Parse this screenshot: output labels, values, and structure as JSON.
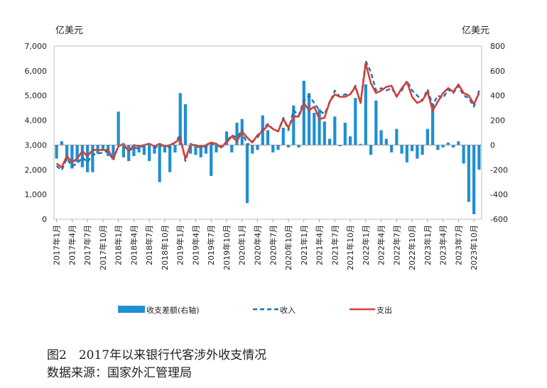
{
  "units": {
    "left": "亿美元",
    "right": "亿美元"
  },
  "caption": {
    "title": "图2　2017年以来银行代客涉外收支情况",
    "source": "数据来源：国家外汇管理局"
  },
  "colors": {
    "balance": "#1f8fd0",
    "income": "#1a6fb5",
    "expense": "#d0413a",
    "axis": "#888888",
    "grid": "#bfbfbf"
  },
  "chart_data": {
    "type": "bar",
    "title": "",
    "x": [
      "2017年1月",
      "2017年2月",
      "2017年3月",
      "2017年4月",
      "2017年5月",
      "2017年6月",
      "2017年7月",
      "2017年8月",
      "2017年9月",
      "2017年10月",
      "2017年11月",
      "2017年12月",
      "2018年1月",
      "2018年2月",
      "2018年3月",
      "2018年4月",
      "2018年5月",
      "2018年6月",
      "2018年7月",
      "2018年8月",
      "2018年9月",
      "2018年10月",
      "2018年11月",
      "2018年12月",
      "2019年1月",
      "2019年2月",
      "2019年3月",
      "2019年4月",
      "2019年5月",
      "2019年6月",
      "2019年7月",
      "2019年8月",
      "2019年9月",
      "2019年10月",
      "2019年11月",
      "2019年12月",
      "2020年1月",
      "2020年2月",
      "2020年3月",
      "2020年4月",
      "2020年5月",
      "2020年6月",
      "2020年7月",
      "2020年8月",
      "2020年9月",
      "2020年10月",
      "2020年11月",
      "2020年12月",
      "2021年1月",
      "2021年2月",
      "2021年3月",
      "2021年4月",
      "2021年5月",
      "2021年6月",
      "2021年7月",
      "2021年8月",
      "2021年9月",
      "2021年10月",
      "2021年11月",
      "2021年12月",
      "2022年1月",
      "2022年2月",
      "2022年3月",
      "2022年4月",
      "2022年5月",
      "2022年6月",
      "2022年7月",
      "2022年8月",
      "2022年9月",
      "2022年10月",
      "2022年11月",
      "2022年12月",
      "2023年1月",
      "2023年2月",
      "2023年3月",
      "2023年4月",
      "2023年5月",
      "2023年6月",
      "2023年7月",
      "2023年8月",
      "2023年9月",
      "2023年10月",
      "2023年11月"
    ],
    "x_tick_labels": [
      "2017年1月",
      "2017年4月",
      "2017年7月",
      "2017年10月",
      "2018年1月",
      "2018年4月",
      "2018年7月",
      "2018年10月",
      "2019年1月",
      "2019年4月",
      "2019年7月",
      "2019年10月",
      "2020年1月",
      "2020年4月",
      "2020年7月",
      "2020年10月",
      "2021年1月",
      "2021年4月",
      "2021年7月",
      "2021年10月",
      "2022年1月",
      "2022年4月",
      "2022年7月",
      "2022年10月",
      "2023年1月",
      "2023年4月",
      "2023年7月",
      "2023年10月"
    ],
    "y_left": {
      "ylim": [
        0,
        7000
      ],
      "ticks": [
        "0",
        "1,000",
        "2,000",
        "3,000",
        "4,000",
        "5,000",
        "6,000",
        "7,000"
      ]
    },
    "y_right": {
      "ylim": [
        -600,
        800
      ],
      "ticks": [
        "-600",
        "-400",
        "-200",
        "0",
        "200",
        "400",
        "600",
        "800"
      ]
    },
    "legend_position": "bottom",
    "series": [
      {
        "name": "收支差额(右轴)",
        "kind": "bar",
        "axis": "right",
        "values": [
          -110,
          30,
          -120,
          -190,
          -140,
          -180,
          -220,
          -220,
          -70,
          -40,
          -90,
          -120,
          270,
          -100,
          -130,
          -90,
          -60,
          -80,
          -130,
          -70,
          -300,
          -60,
          -220,
          -60,
          420,
          330,
          -70,
          -80,
          -100,
          -70,
          -250,
          -60,
          -20,
          110,
          -60,
          180,
          210,
          -470,
          -70,
          -40,
          240,
          120,
          -60,
          -40,
          140,
          -20,
          320,
          -20,
          520,
          420,
          260,
          290,
          190,
          50,
          230,
          -10,
          180,
          70,
          380,
          10,
          490,
          -80,
          360,
          120,
          50,
          -60,
          130,
          -70,
          -140,
          -50,
          -110,
          -80,
          130,
          330,
          -40,
          -20,
          20,
          -20,
          30,
          -150,
          -460,
          -560,
          -200
        ],
        "color": "#1f8fd0"
      },
      {
        "name": "收入",
        "kind": "line",
        "axis": "left",
        "style": "dashed",
        "values": [
          2150,
          1980,
          2450,
          2150,
          2250,
          2500,
          2300,
          2600,
          2650,
          2700,
          2750,
          2380,
          2980,
          3000,
          2750,
          2900,
          2850,
          3000,
          3050,
          2900,
          2950,
          3000,
          2900,
          3100,
          3400,
          2350,
          3050,
          2950,
          2900,
          2950,
          3050,
          3000,
          2900,
          3150,
          3400,
          3300,
          3600,
          3000,
          3150,
          3300,
          3650,
          3850,
          3650,
          3550,
          4100,
          3600,
          4400,
          4200,
          4800,
          5000,
          4700,
          4400,
          4250,
          4700,
          5200,
          4950,
          5050,
          5050,
          5400,
          4700,
          6400,
          5950,
          5200,
          5300,
          5200,
          5300,
          5000,
          5200,
          5600,
          5200,
          5000,
          4800,
          5250,
          4600,
          5000,
          4900,
          5250,
          5100,
          5400,
          5000,
          4900,
          4550,
          5200
        ],
        "color": "#1a6fb5"
      },
      {
        "name": "支出",
        "kind": "line",
        "axis": "left",
        "style": "solid",
        "values": [
          2250,
          2100,
          2550,
          2300,
          2450,
          2750,
          2550,
          2800,
          2800,
          2800,
          2800,
          2450,
          2950,
          3050,
          2750,
          3000,
          2950,
          3000,
          3050,
          2950,
          3050,
          2950,
          3000,
          3100,
          3250,
          2450,
          3000,
          3000,
          2900,
          3000,
          3100,
          3050,
          2900,
          3100,
          3350,
          3150,
          3550,
          3300,
          3100,
          3400,
          3550,
          3800,
          3650,
          3550,
          4050,
          3700,
          4150,
          4150,
          4700,
          4400,
          4550,
          4050,
          4100,
          4750,
          5050,
          4950,
          4950,
          5050,
          5350,
          4700,
          6300,
          5500,
          5100,
          5200,
          5350,
          5400,
          4950,
          5300,
          5550,
          4950,
          4700,
          4800,
          5150,
          4400,
          4750,
          5100,
          5300,
          5150,
          5450,
          5100,
          5000,
          4650,
          5100
        ],
        "color": "#d0413a"
      }
    ]
  }
}
